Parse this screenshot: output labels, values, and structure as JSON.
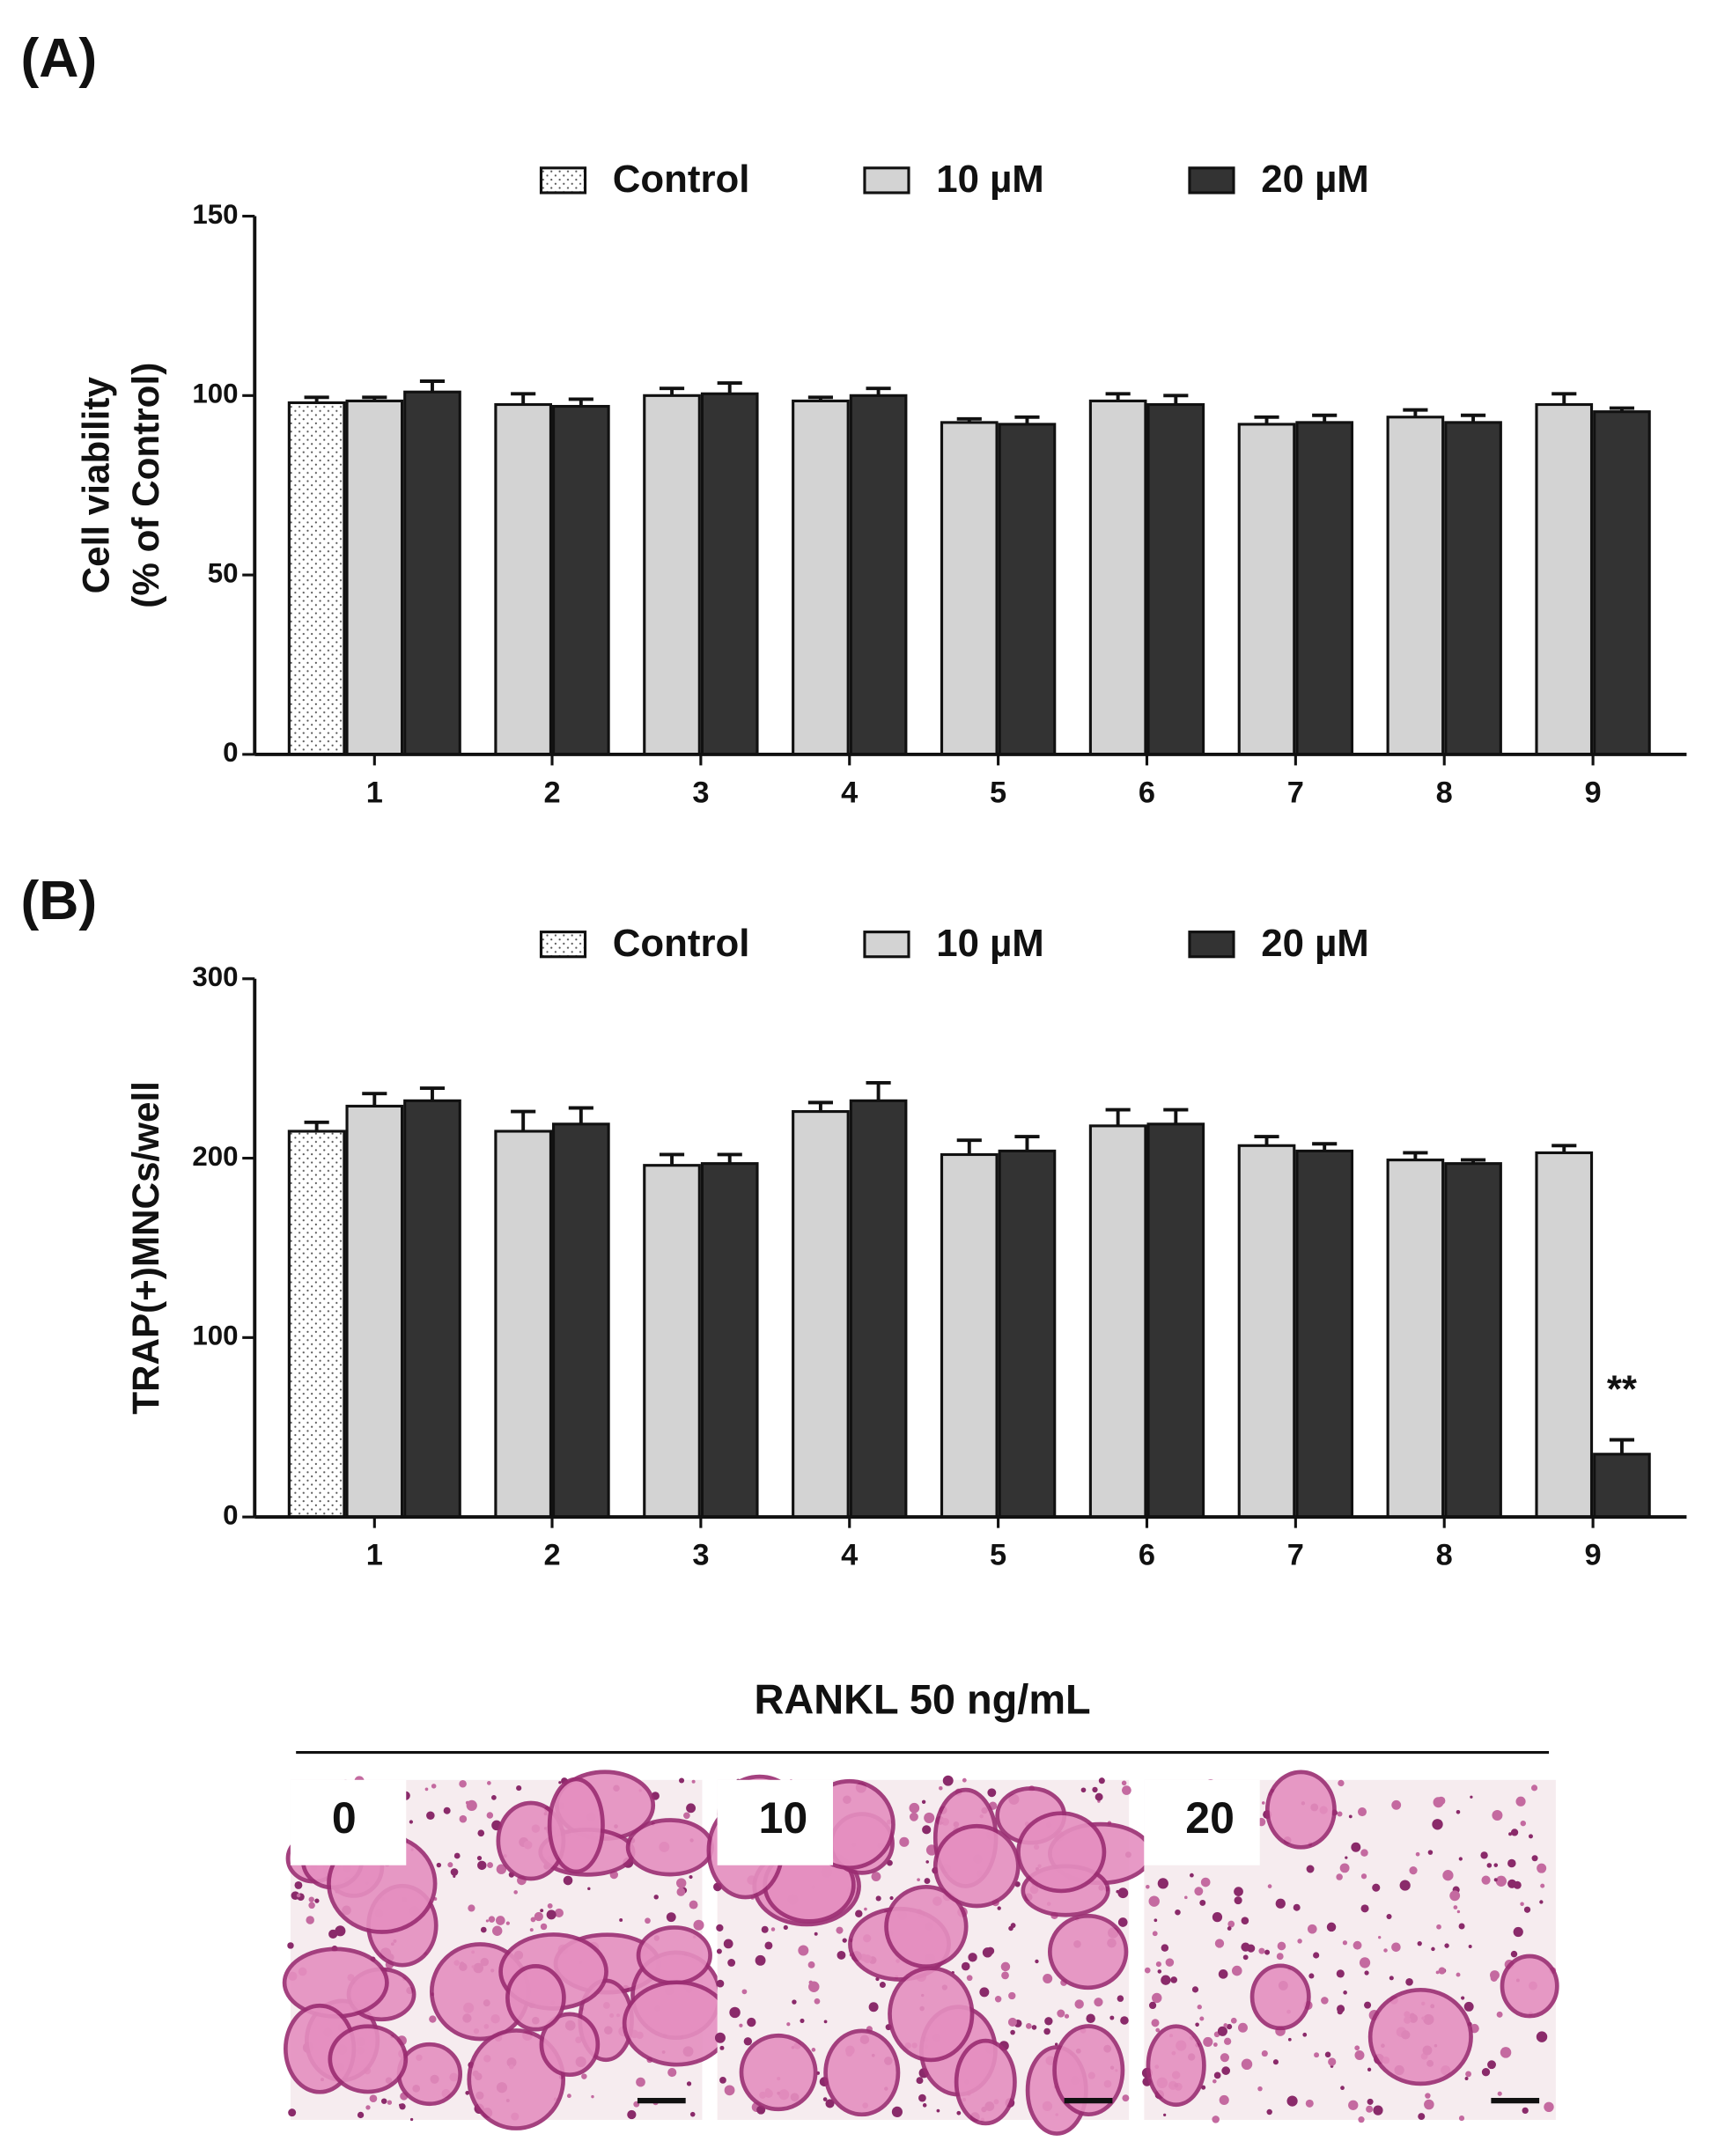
{
  "chart_data": [
    {
      "type": "bar",
      "panel_label": "(A)",
      "ylabel": [
        "Cell viability",
        "(% of Control)"
      ],
      "categories": [
        "1",
        "2",
        "3",
        "4",
        "5",
        "6",
        "7",
        "8",
        "9"
      ],
      "series": [
        {
          "name": "Control",
          "color": "#ffffff",
          "values": [
            98,
            null,
            null,
            null,
            null,
            null,
            null,
            null,
            null
          ],
          "errors": [
            1.5,
            null,
            null,
            null,
            null,
            null,
            null,
            null,
            null
          ]
        },
        {
          "name": "10 µM",
          "color": "#d3d3d3",
          "values": [
            98.5,
            97.5,
            100,
            98.5,
            92.5,
            98.5,
            92,
            94,
            97.5
          ],
          "errors": [
            1,
            3,
            2,
            1,
            1,
            2,
            2,
            2,
            3
          ]
        },
        {
          "name": "20 µM",
          "color": "#333333",
          "values": [
            101,
            97,
            100.5,
            100,
            92,
            97.5,
            92.5,
            92.5,
            95.5
          ],
          "errors": [
            3,
            2,
            3,
            2,
            2,
            2.5,
            2,
            2,
            1
          ]
        }
      ],
      "ylim": [
        0,
        150
      ],
      "yticks": [
        0,
        50,
        100,
        150
      ]
    },
    {
      "type": "bar",
      "panel_label": "(B)",
      "ylabel": [
        "TRAP(+)MNCs/well"
      ],
      "categories": [
        "1",
        "2",
        "3",
        "4",
        "5",
        "6",
        "7",
        "8",
        "9"
      ],
      "series": [
        {
          "name": "Control",
          "color": "#ffffff",
          "values": [
            215,
            null,
            null,
            null,
            null,
            null,
            null,
            null,
            null
          ],
          "errors": [
            5,
            null,
            null,
            null,
            null,
            null,
            null,
            null,
            null
          ]
        },
        {
          "name": "10 µM",
          "color": "#d3d3d3",
          "values": [
            229,
            215,
            196,
            226,
            202,
            218,
            207,
            199,
            203
          ],
          "errors": [
            7,
            11,
            6,
            5,
            8,
            9,
            5,
            4,
            4
          ]
        },
        {
          "name": "20 µM",
          "color": "#333333",
          "values": [
            232,
            219,
            197,
            232,
            204,
            219,
            204,
            197,
            35
          ],
          "errors": [
            7,
            9,
            5,
            10,
            8,
            8,
            4,
            2,
            8
          ]
        }
      ],
      "ylim": [
        0,
        300
      ],
      "yticks": [
        0,
        100,
        200,
        300
      ],
      "annotation": "**"
    }
  ],
  "images": {
    "title": "RANKL 50 ng/mL",
    "labels": [
      "0",
      "10",
      "20"
    ]
  }
}
